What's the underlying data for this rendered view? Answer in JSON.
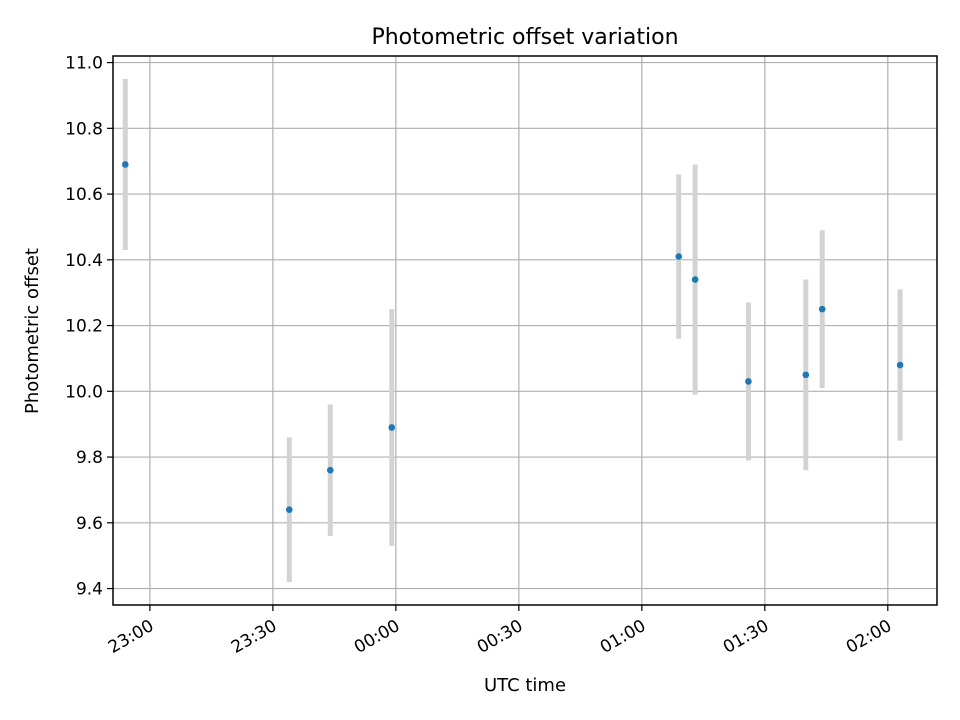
{
  "chart_data": {
    "type": "scatter",
    "title": "Photometric offset variation",
    "xlabel": "UTC time",
    "ylabel": "Photometric offset",
    "grid": true,
    "x_axis": {
      "type": "time",
      "min": "22:51",
      "max": "02:12",
      "ticks": [
        "23:00",
        "23:30",
        "00:00",
        "00:30",
        "01:00",
        "01:30",
        "02:00"
      ],
      "tick_label_rotation": 30
    },
    "y_axis": {
      "min": 9.35,
      "max": 11.02,
      "ticks": [
        "9.4",
        "9.6",
        "9.8",
        "10.0",
        "10.2",
        "10.4",
        "10.6",
        "10.8",
        "11.0"
      ]
    },
    "marker_color": "#1f77b4",
    "errorbar_color": "#d3d3d3",
    "points": [
      {
        "x": "22:54",
        "y": 10.69,
        "err": 0.26
      },
      {
        "x": "23:34",
        "y": 9.64,
        "err": 0.22
      },
      {
        "x": "23:44",
        "y": 9.76,
        "err": 0.2
      },
      {
        "x": "23:59",
        "y": 9.89,
        "err": 0.36
      },
      {
        "x": "01:09",
        "y": 10.41,
        "err": 0.25
      },
      {
        "x": "01:13",
        "y": 10.34,
        "err": 0.35
      },
      {
        "x": "01:26",
        "y": 10.03,
        "err": 0.24
      },
      {
        "x": "01:40",
        "y": 10.05,
        "err": 0.29
      },
      {
        "x": "01:44",
        "y": 10.25,
        "err": 0.24
      },
      {
        "x": "02:03",
        "y": 10.08,
        "err": 0.23
      }
    ]
  }
}
